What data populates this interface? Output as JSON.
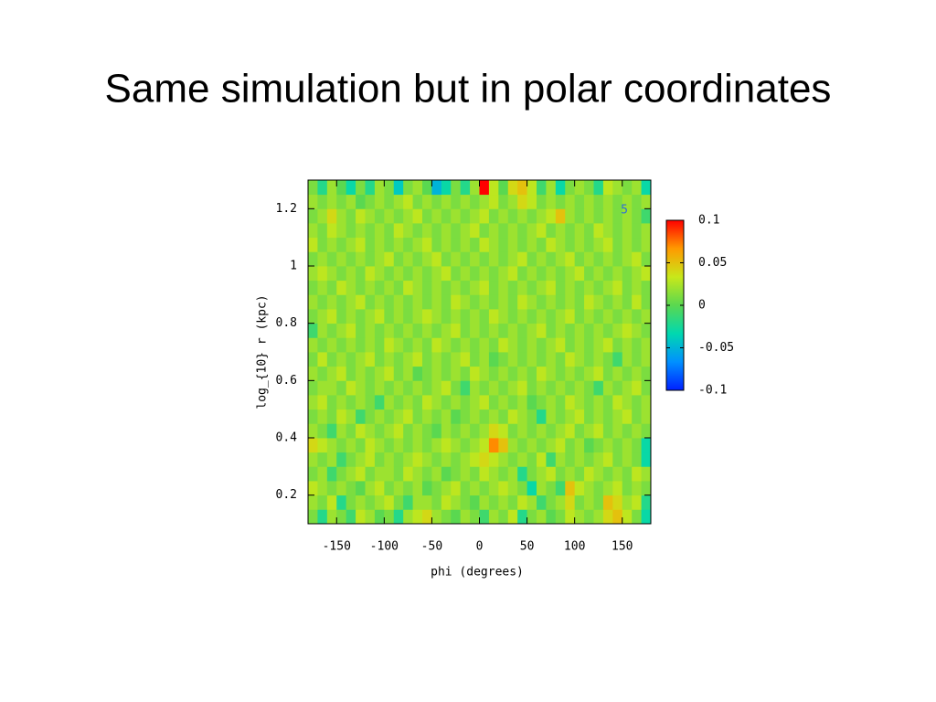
{
  "chart_data": {
    "type": "heatmap",
    "title": "Same simulation but in polar coordinates",
    "xlabel": "phi (degrees)",
    "ylabel": "log_{10} r  (kpc)",
    "annotation": "5",
    "xlim": [
      -180,
      180
    ],
    "xticks": [
      -150,
      -100,
      -50,
      0,
      50,
      100,
      150
    ],
    "ylim": [
      0.1,
      1.3
    ],
    "yticks": [
      0.2,
      0.4,
      0.6,
      0.8,
      1,
      1.2
    ],
    "zlim": [
      -0.1,
      0.1
    ],
    "zticks": [
      -0.1,
      -0.05,
      0,
      0.05,
      0.1
    ],
    "colormap": [
      "#0020ff",
      "#0090ff",
      "#00d8b0",
      "#5ad850",
      "#c8e81a",
      "#ff9a00",
      "#ff0000"
    ],
    "x": [
      -175,
      -165,
      -155,
      -145,
      -135,
      -125,
      -115,
      -105,
      -95,
      -85,
      -75,
      -65,
      -55,
      -45,
      -35,
      -25,
      -15,
      -5,
      5,
      15,
      25,
      35,
      45,
      55,
      65,
      75,
      85,
      95,
      105,
      115,
      125,
      135,
      145,
      155,
      165,
      175
    ],
    "y": [
      0.125,
      0.175,
      0.225,
      0.275,
      0.325,
      0.375,
      0.425,
      0.475,
      0.525,
      0.575,
      0.625,
      0.675,
      0.725,
      0.775,
      0.825,
      0.875,
      0.925,
      0.975,
      1.025,
      1.075,
      1.125,
      1.175,
      1.225,
      1.275
    ],
    "z": [
      [
        0.01,
        -0.02,
        0.02,
        0.01,
        -0.01,
        0.03,
        0.02,
        0,
        0.01,
        -0.02,
        0.02,
        0.03,
        0.04,
        0.02,
        0.01,
        0,
        0.02,
        0.01,
        -0.01,
        0.02,
        0.01,
        0.03,
        -0.02,
        0.01,
        0.02,
        0,
        0.01,
        0.03,
        0.02,
        0.01,
        0.02,
        0.04,
        0.05,
        0.03,
        0.01,
        -0.03
      ],
      [
        0.02,
        0.01,
        0.03,
        -0.02,
        0.01,
        0.02,
        0.01,
        0.02,
        0.03,
        0.01,
        -0.01,
        0.02,
        0.02,
        0.01,
        0.03,
        0.02,
        0.01,
        0,
        0.02,
        0.01,
        0.02,
        0.01,
        0.03,
        0.02,
        -0.01,
        0.01,
        0.02,
        0.04,
        0.01,
        0.02,
        0.01,
        0.05,
        0.04,
        0.02,
        0.03,
        -0.02
      ],
      [
        0.03,
        0.02,
        0.01,
        0.02,
        0.01,
        0,
        0.02,
        0.03,
        0.01,
        0.02,
        0.01,
        0.02,
        0,
        0.01,
        0.02,
        0.03,
        0.01,
        0.02,
        0.01,
        0.02,
        0.03,
        0.02,
        0.01,
        -0.03,
        0.02,
        0.01,
        -0.01,
        0.05,
        0.03,
        0.02,
        0.01,
        0.02,
        0.03,
        0.01,
        0.02,
        0.01
      ],
      [
        0.01,
        0.02,
        -0.01,
        0.01,
        0.02,
        0.03,
        0.01,
        0.02,
        0.02,
        0.01,
        0.03,
        0.02,
        0.01,
        0.02,
        0,
        0.01,
        0.02,
        0.01,
        0.03,
        0.02,
        0.01,
        0.02,
        -0.02,
        0.01,
        0.02,
        0.03,
        0.01,
        0.02,
        0.01,
        0.03,
        0.02,
        0.01,
        0.02,
        0.01,
        0.03,
        0.02
      ],
      [
        0.02,
        0.01,
        0.02,
        -0.01,
        0.01,
        0.02,
        0.03,
        0.01,
        0.02,
        0.01,
        0.02,
        0.03,
        0.02,
        0.01,
        0.02,
        0.01,
        0.02,
        0.03,
        0.04,
        0.03,
        0.02,
        0.01,
        0.02,
        0.01,
        0.03,
        -0.01,
        0.02,
        0.01,
        0.02,
        0.01,
        0.02,
        0.03,
        0.01,
        0.02,
        0.01,
        -0.03
      ],
      [
        0.04,
        0.03,
        0.02,
        0.01,
        0.02,
        0.01,
        0.03,
        0.02,
        0.01,
        0.02,
        0.01,
        0.02,
        0.01,
        0.02,
        0.03,
        0.02,
        0.01,
        0.02,
        0.03,
        0.07,
        0.05,
        0.02,
        0.01,
        0.02,
        0.01,
        0.02,
        0.03,
        0.01,
        0.02,
        0,
        0.01,
        0.02,
        0.01,
        0.02,
        0.01,
        -0.03
      ],
      [
        0.02,
        0.01,
        -0.01,
        0.02,
        0.01,
        0.03,
        0.02,
        0.01,
        0.02,
        0.03,
        0.01,
        0.02,
        0.01,
        0,
        0.02,
        0.01,
        0.02,
        0.01,
        0.02,
        0.04,
        0.03,
        0.01,
        0.02,
        0.01,
        0.02,
        0.01,
        0.02,
        0.03,
        0.01,
        0.02,
        0.03,
        0.01,
        0.02,
        0.01,
        0.02,
        0.01
      ],
      [
        0.01,
        0.02,
        0.01,
        0.03,
        0.02,
        -0.01,
        0.01,
        0.02,
        0.01,
        0.02,
        0.03,
        0.01,
        0.02,
        0.01,
        0.02,
        0,
        0.01,
        0.02,
        0.01,
        0.02,
        0.01,
        0.03,
        0.02,
        0.01,
        -0.02,
        0.02,
        0.01,
        0.02,
        0.03,
        0.01,
        0.02,
        0.01,
        0.02,
        0.03,
        0.01,
        0.02
      ],
      [
        0.02,
        0.03,
        0.01,
        0.02,
        0.01,
        0.02,
        0.01,
        -0.01,
        0.02,
        0.01,
        0.02,
        0.01,
        0.03,
        0.02,
        0.01,
        0.02,
        0.01,
        0.02,
        0.03,
        0.01,
        0.02,
        0.01,
        0.02,
        0,
        0.01,
        0.02,
        0.01,
        0.03,
        0.02,
        0.01,
        0.02,
        0.01,
        0.03,
        0.02,
        0.01,
        0.02
      ],
      [
        0.01,
        0.02,
        0.02,
        0.01,
        0.03,
        0.02,
        0.01,
        0.02,
        0.01,
        0.02,
        0.01,
        0.02,
        0.01,
        0.02,
        0.03,
        0.01,
        -0.01,
        0.02,
        0.01,
        0.02,
        0.01,
        0.02,
        0.03,
        0.01,
        0.02,
        0.01,
        0.02,
        0.01,
        0.02,
        0.01,
        -0.01,
        0.02,
        0.01,
        0.02,
        0.03,
        0.01
      ],
      [
        0.02,
        0.01,
        0.02,
        0.03,
        0.01,
        0.02,
        0.01,
        0.02,
        0.03,
        0.01,
        0.02,
        0,
        0.01,
        0.02,
        0.01,
        0.02,
        0.01,
        0.03,
        0.02,
        0.01,
        0.02,
        0.01,
        0.02,
        0.01,
        0.03,
        0.02,
        0.01,
        0.02,
        0.01,
        0.02,
        0.03,
        0.01,
        0.02,
        0.01,
        0.02,
        0.01
      ],
      [
        0.01,
        0.03,
        0.01,
        0.02,
        0.01,
        0.02,
        0.03,
        0.01,
        0.02,
        0.01,
        0.02,
        0.03,
        0.01,
        0.02,
        0.01,
        0.02,
        0.03,
        0.01,
        0.02,
        0,
        0.01,
        0.02,
        0.01,
        0.02,
        0.01,
        0.02,
        0.01,
        0.03,
        0.02,
        0.01,
        0.02,
        0.01,
        -0.01,
        0.02,
        0.01,
        0.02
      ],
      [
        0.02,
        0.01,
        0.02,
        0.01,
        0.02,
        0.01,
        0.02,
        0.01,
        0.03,
        0.02,
        0.01,
        0.02,
        0.01,
        0.03,
        0.02,
        0.01,
        0.02,
        0.01,
        0.02,
        0.01,
        0.03,
        0.02,
        0.01,
        0.02,
        0.01,
        0.02,
        0.03,
        0.01,
        0.02,
        0.01,
        0.02,
        0.03,
        0.01,
        0.02,
        0.01,
        0.02
      ],
      [
        -0.01,
        0.02,
        0.01,
        0.02,
        0.03,
        0.01,
        0.02,
        0.01,
        0.02,
        0.01,
        0.02,
        0.01,
        0.02,
        0.01,
        0.02,
        0.03,
        0.01,
        0.02,
        0.01,
        0.02,
        0.01,
        0.02,
        0.01,
        0.02,
        0.03,
        0.01,
        0.02,
        0.01,
        0.02,
        0.01,
        0.02,
        0.01,
        0.02,
        0.03,
        0.02,
        0.01
      ],
      [
        0.01,
        0.02,
        0.03,
        0.01,
        0.02,
        0.01,
        0.02,
        0.03,
        0.01,
        0.02,
        0.01,
        0.02,
        0.03,
        0.02,
        0.01,
        0.02,
        0.01,
        0.02,
        0.01,
        0.03,
        0.02,
        0.01,
        0.02,
        0.01,
        0.02,
        0.01,
        0.02,
        0.03,
        0.01,
        0.02,
        0.01,
        0.02,
        0.01,
        0.02,
        0.01,
        0.02
      ],
      [
        0.02,
        0.01,
        0.02,
        0.01,
        0.02,
        0.03,
        0.01,
        0.02,
        0.01,
        0.02,
        0.01,
        0.02,
        0.01,
        0.02,
        0.01,
        0.03,
        0.02,
        0.01,
        0.02,
        0.01,
        0.02,
        0.01,
        0.03,
        0.02,
        0.01,
        0.02,
        0.01,
        0.02,
        0.01,
        0.03,
        0.02,
        0.01,
        0.02,
        0.01,
        0.03,
        0.01
      ],
      [
        0.01,
        0.02,
        0.01,
        0.03,
        0.02,
        0.01,
        0.02,
        0.01,
        0.02,
        0.01,
        0.03,
        0.02,
        0.01,
        0.02,
        0.01,
        0.02,
        0.01,
        0.02,
        0.03,
        0.01,
        0.02,
        0.01,
        0.02,
        0.01,
        0.02,
        0.03,
        0.01,
        0.02,
        0.01,
        0.02,
        0.01,
        0.02,
        0.03,
        0.01,
        0.02,
        0.01
      ],
      [
        0.02,
        0.03,
        0.02,
        0.01,
        0.02,
        0.01,
        0.03,
        0.02,
        0.01,
        0.02,
        0.01,
        0.02,
        0.01,
        0.02,
        0.03,
        0.01,
        0.02,
        0.01,
        0.02,
        0.01,
        0.02,
        0.03,
        0.01,
        0.02,
        0.01,
        0.02,
        0.01,
        0.02,
        0.03,
        0.01,
        0.02,
        0.01,
        0.02,
        0.01,
        0.02,
        0.03
      ],
      [
        0.01,
        0.02,
        0.01,
        0.02,
        0.01,
        0.02,
        0.01,
        0.02,
        0.03,
        0.01,
        0.02,
        0.01,
        0.02,
        0.03,
        0.01,
        0.02,
        0.01,
        0.02,
        0.01,
        0.02,
        0.01,
        0.02,
        0.03,
        0.01,
        0.02,
        0.01,
        0.02,
        0.03,
        0.01,
        0.02,
        0.01,
        0.02,
        0.01,
        0.02,
        0.03,
        0.01
      ],
      [
        0.03,
        0.01,
        0.02,
        0.01,
        0.02,
        0.03,
        0.01,
        0.02,
        0.01,
        0.02,
        0.01,
        0.02,
        0.03,
        0.01,
        0.02,
        0.01,
        0.02,
        0.01,
        0.03,
        0.02,
        0.01,
        0.02,
        0.01,
        0.02,
        0.01,
        0.03,
        0.02,
        0.01,
        0.02,
        0.01,
        0.02,
        0.03,
        0.01,
        0.02,
        0.01,
        0.02
      ],
      [
        0.02,
        0.01,
        0.03,
        0.02,
        0.01,
        0.02,
        0.01,
        0.02,
        0.01,
        0.03,
        0.02,
        0.01,
        0.02,
        0.01,
        0.02,
        0.01,
        0.02,
        0.03,
        0.01,
        0.02,
        0.01,
        0.02,
        0.01,
        0.02,
        0.03,
        0.01,
        0.02,
        0.01,
        0.02,
        0.01,
        0.03,
        0.02,
        0.01,
        0.02,
        0.01,
        0.02
      ],
      [
        0.01,
        0.02,
        0.04,
        0.02,
        0.01,
        0.03,
        0.02,
        0.01,
        0.02,
        0.01,
        0.02,
        0.03,
        0.01,
        0.02,
        0.01,
        0.02,
        0.01,
        0.02,
        0.03,
        0.01,
        0.02,
        0.01,
        0.02,
        0.01,
        0.02,
        0.03,
        0.05,
        0.02,
        0.01,
        0.02,
        0.01,
        0.02,
        0.01,
        0.02,
        0.01,
        -0.01
      ],
      [
        0.02,
        0.01,
        0.02,
        0.01,
        0.02,
        0,
        0.01,
        0.02,
        0.01,
        0.02,
        0.03,
        0.01,
        0.02,
        0.01,
        0.02,
        0.01,
        0.02,
        0.01,
        0.02,
        0.03,
        0.01,
        0.02,
        0.04,
        0.03,
        0.01,
        0.02,
        0.01,
        0.02,
        0.01,
        0.02,
        0.01,
        0.02,
        0.01,
        0.02,
        0.01,
        0.02
      ],
      [
        0.01,
        -0.02,
        0.02,
        0,
        -0.03,
        0.01,
        -0.02,
        0.02,
        0.01,
        -0.04,
        0.01,
        0.02,
        0,
        -0.05,
        -0.03,
        0.01,
        -0.02,
        0.02,
        0.1,
        0.03,
        0,
        0.04,
        0.05,
        0.03,
        -0.01,
        0.02,
        -0.03,
        0.01,
        0.02,
        0.01,
        -0.02,
        0.03,
        0.02,
        0.01,
        0.02,
        -0.03
      ]
    ]
  }
}
